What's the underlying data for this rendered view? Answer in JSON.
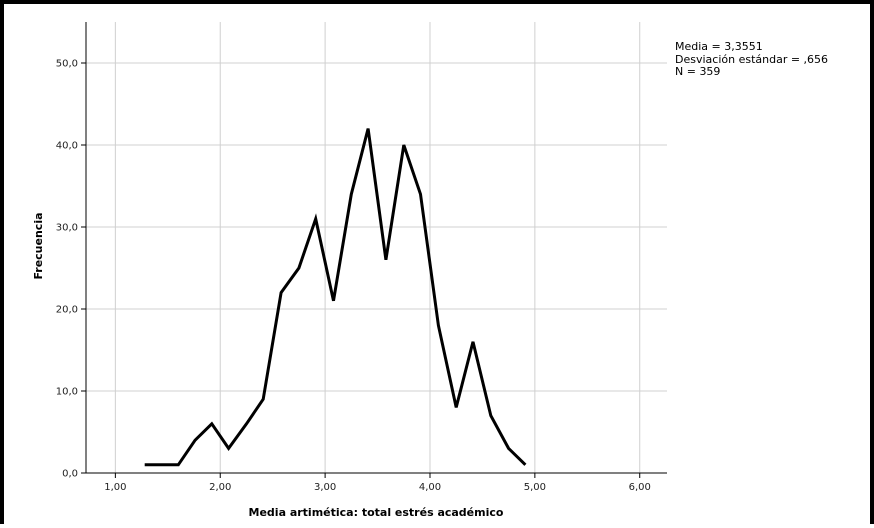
{
  "chart_data": {
    "type": "line",
    "title": "",
    "xlabel": "Media artimética: total estrés académico",
    "ylabel": "Frecuencia",
    "xlim": [
      0.72,
      6.26
    ],
    "ylim": [
      0,
      55
    ],
    "xticks": [
      1.0,
      2.0,
      3.0,
      4.0,
      5.0,
      6.0
    ],
    "xtick_labels": [
      "1,00",
      "2,00",
      "3,00",
      "4,00",
      "5,00",
      "6,00"
    ],
    "yticks": [
      0,
      10,
      20,
      30,
      40,
      50
    ],
    "ytick_labels": [
      "0,0",
      "10,0",
      "20,0",
      "30,0",
      "40,0",
      "50,0"
    ],
    "grid": true,
    "legend": "none",
    "line_color": "#000000",
    "grid_color": "#d0d0d0",
    "series": [
      {
        "x": [
          1.28,
          1.44,
          1.6,
          1.76,
          1.92,
          2.08,
          2.25,
          2.41,
          2.58,
          2.75,
          2.91,
          3.08,
          3.25,
          3.41,
          3.58,
          3.75,
          3.91,
          4.08,
          4.25,
          4.41,
          4.58,
          4.75,
          4.91
        ],
        "y": [
          1,
          1,
          1,
          4,
          6,
          3,
          6,
          9,
          22,
          25,
          31,
          21,
          34,
          42,
          26,
          40,
          34,
          18,
          8,
          16,
          7,
          3,
          1
        ]
      }
    ],
    "stats": [
      "Media = 3,3551",
      "Desviación estándar = ,656",
      "N = 359"
    ]
  }
}
